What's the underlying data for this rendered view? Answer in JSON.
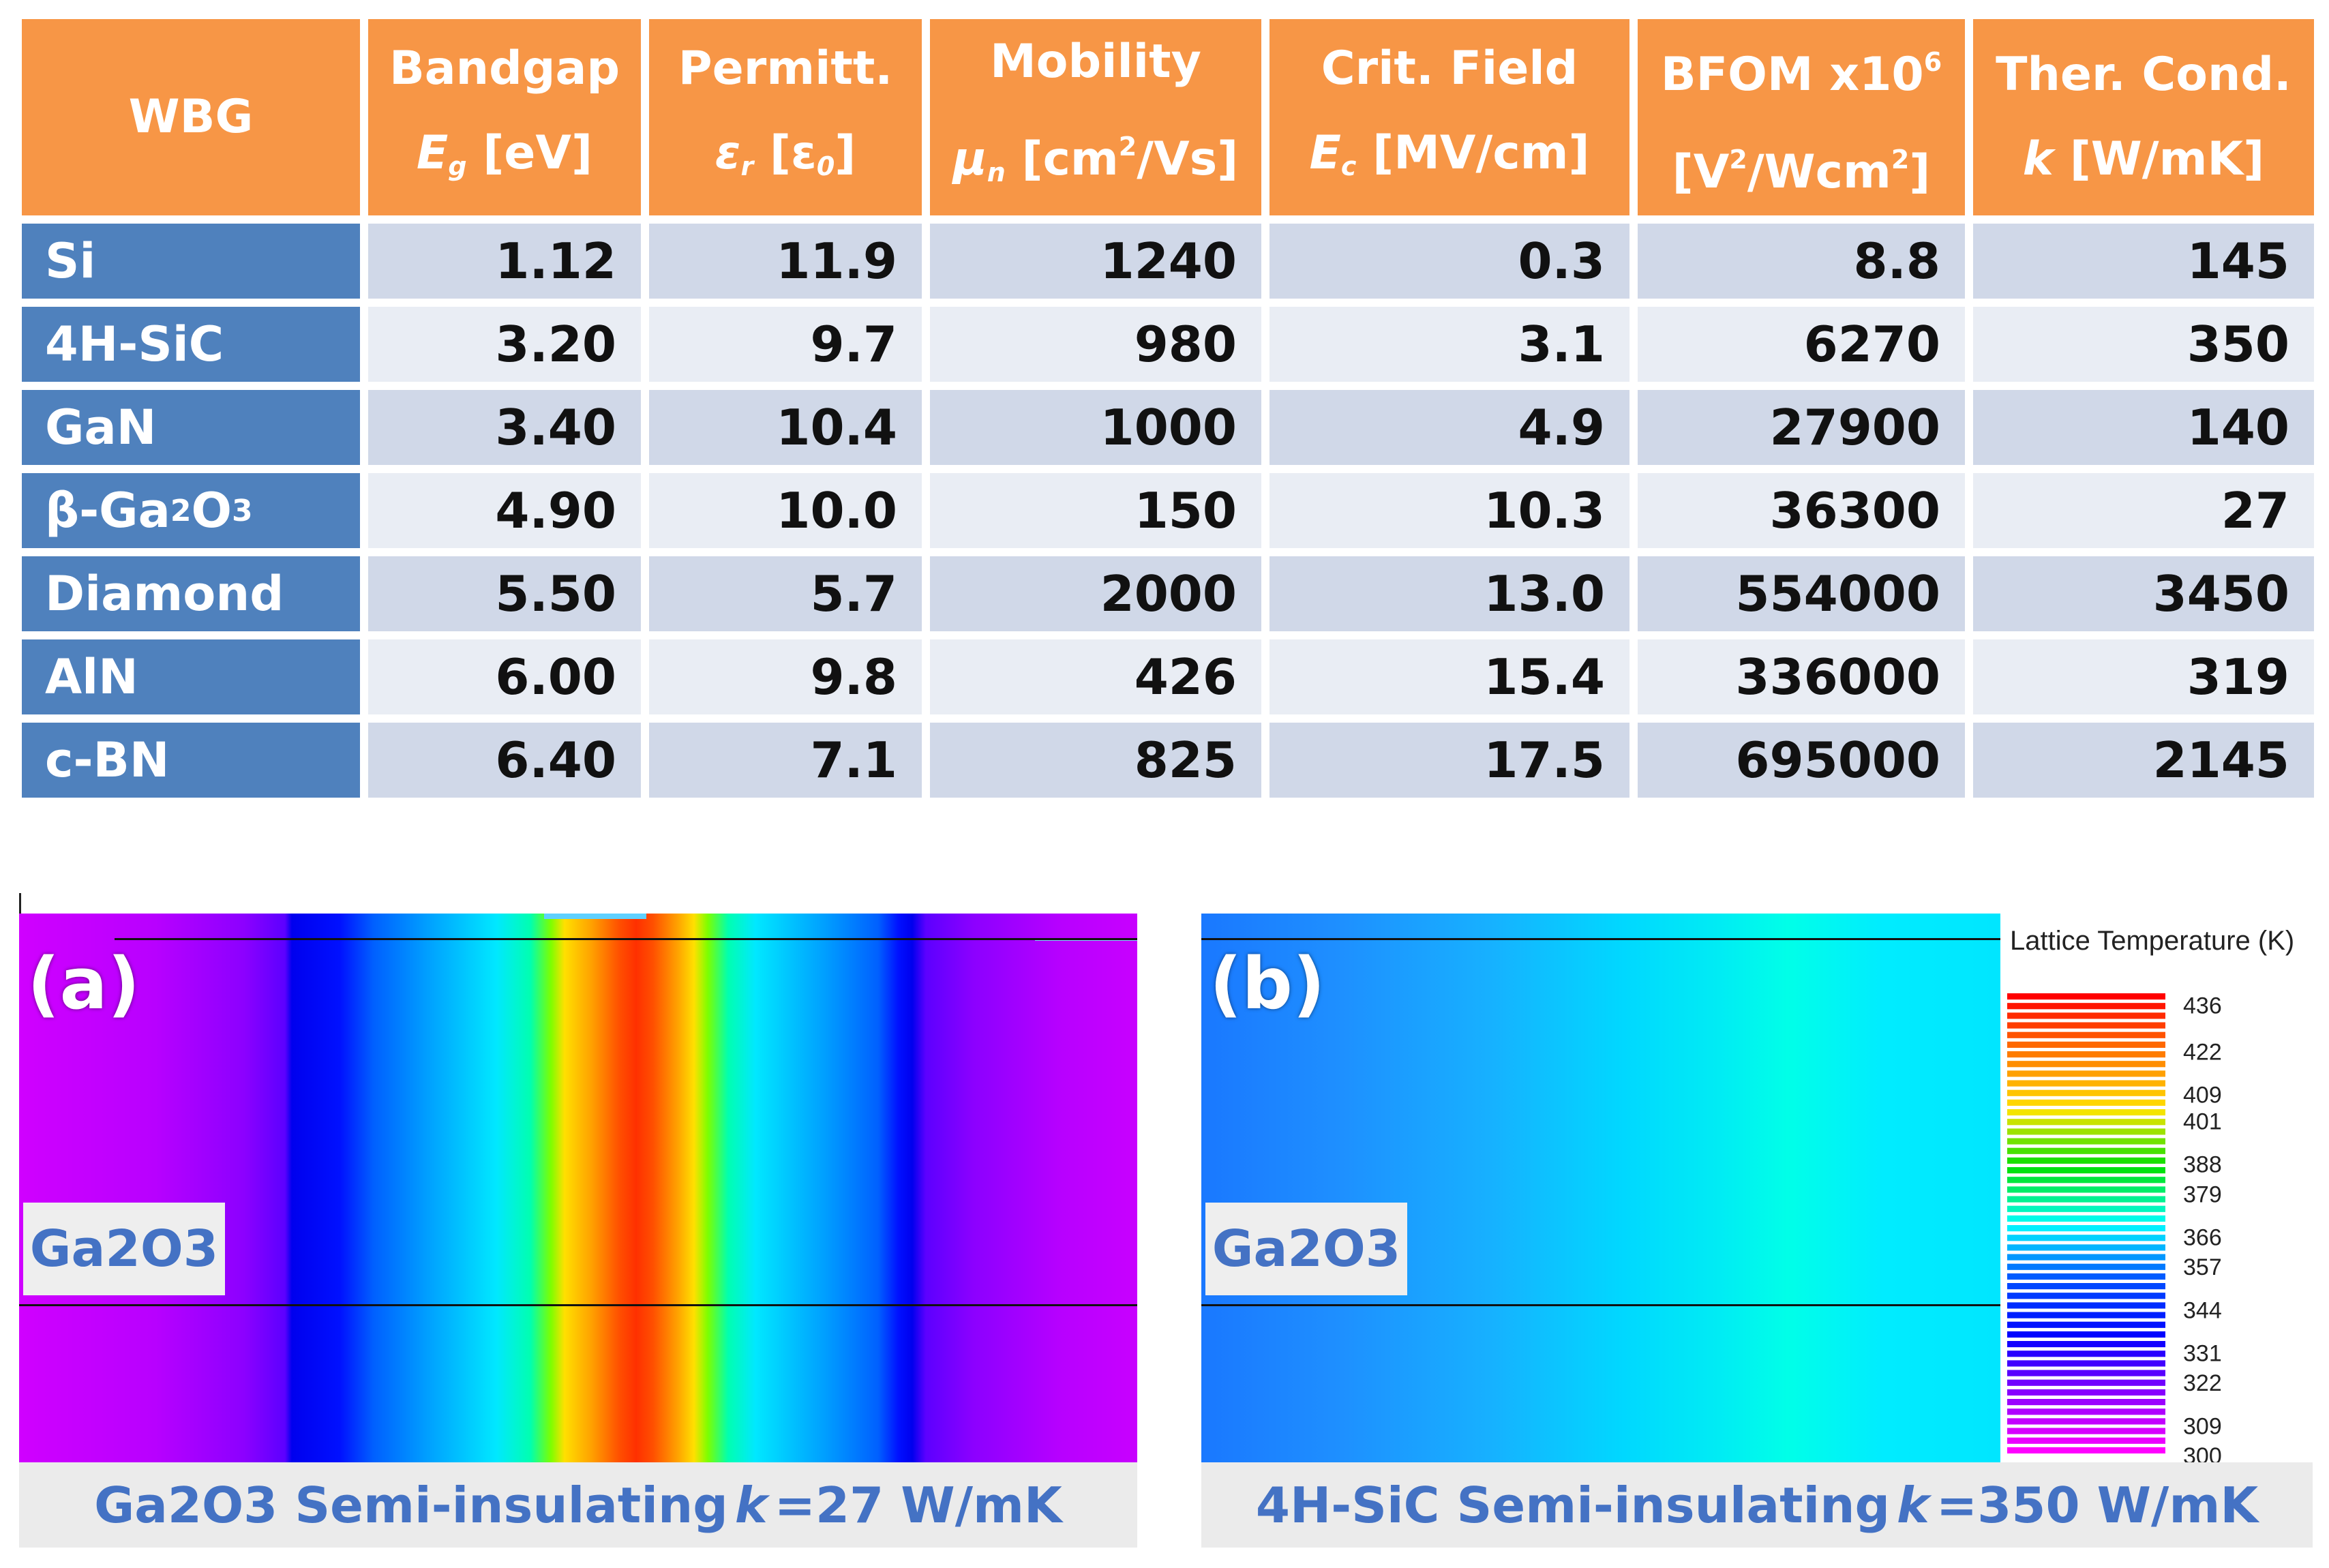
{
  "table": {
    "headers": [
      {
        "line1": "WBG",
        "line2": ""
      },
      {
        "line1": "Bandgap",
        "sym": "E",
        "sub": "g",
        "unit": "[eV]"
      },
      {
        "line1": "Permitt.",
        "sym": "ε",
        "sub": "r",
        "unit": "[ε",
        "unit_sub": "0",
        "unit_end": "]"
      },
      {
        "line1": "Mobility",
        "sym": "μ",
        "sub": "n",
        "unit": "[cm",
        "unit_sup": "2",
        "unit_end": "/Vs]"
      },
      {
        "line1": "Crit. Field",
        "sym": "E",
        "sub": "c",
        "unit": "[MV/cm]"
      },
      {
        "line1": "BFOM x10",
        "line1_sup": "6",
        "unit": "[V",
        "unit_sup": "2",
        "unit_mid": "/Wcm",
        "unit_sup2": "2",
        "unit_end": "]"
      },
      {
        "line1": "Ther. Cond.",
        "sym": "k",
        "unit": "[W/mK]"
      }
    ],
    "rows": [
      {
        "name": "Si",
        "values": [
          "1.12",
          "11.9",
          "1240",
          "0.3",
          "8.8",
          "145"
        ]
      },
      {
        "name": "4H-SiC",
        "values": [
          "3.20",
          "9.7",
          "980",
          "3.1",
          "6270",
          "350"
        ]
      },
      {
        "name": "GaN",
        "values": [
          "3.40",
          "10.4",
          "1000",
          "4.9",
          "27900",
          "140"
        ]
      },
      {
        "name": "β-Ga",
        "name_sub1": "2",
        "name_mid": "O",
        "name_sub2": "3",
        "values": [
          "4.90",
          "10.0",
          "150",
          "10.3",
          "36300",
          "27"
        ]
      },
      {
        "name": "Diamond",
        "values": [
          "5.50",
          "5.7",
          "2000",
          "13.0",
          "554000",
          "3450"
        ]
      },
      {
        "name": "AlN",
        "values": [
          "6.00",
          "9.8",
          "426",
          "15.4",
          "336000",
          "319"
        ]
      },
      {
        "name": "c-BN",
        "values": [
          "6.40",
          "7.1",
          "825",
          "17.5",
          "695000",
          "2145"
        ]
      }
    ]
  },
  "panel_a": {
    "label": "(a)",
    "material": "Ga2O3",
    "caption_pre": "Ga2O3 Semi-insulating",
    "caption_k": "k",
    "caption_post": "=27 W/mK"
  },
  "panel_b": {
    "label": "(b)",
    "material": "Ga2O3",
    "caption_pre": "4H-SiC Semi-insulating",
    "caption_k": "k",
    "caption_post": "=350 W/mK"
  },
  "legend": {
    "title": "Lattice Temperature (K)",
    "ticks": [
      "436",
      "422",
      "409",
      "401",
      "388",
      "379",
      "366",
      "357",
      "344",
      "331",
      "322",
      "309",
      "300"
    ],
    "tick_values": [
      436,
      422,
      409,
      401,
      388,
      379,
      366,
      357,
      344,
      331,
      322,
      309,
      300
    ],
    "min": 300,
    "max": 440,
    "colors": [
      "#ff0000",
      "#ff7a00",
      "#ffe400",
      "#00e000",
      "#00ffff",
      "#0050ff",
      "#0000ff",
      "#8a00ff",
      "#ff00ff"
    ]
  }
}
